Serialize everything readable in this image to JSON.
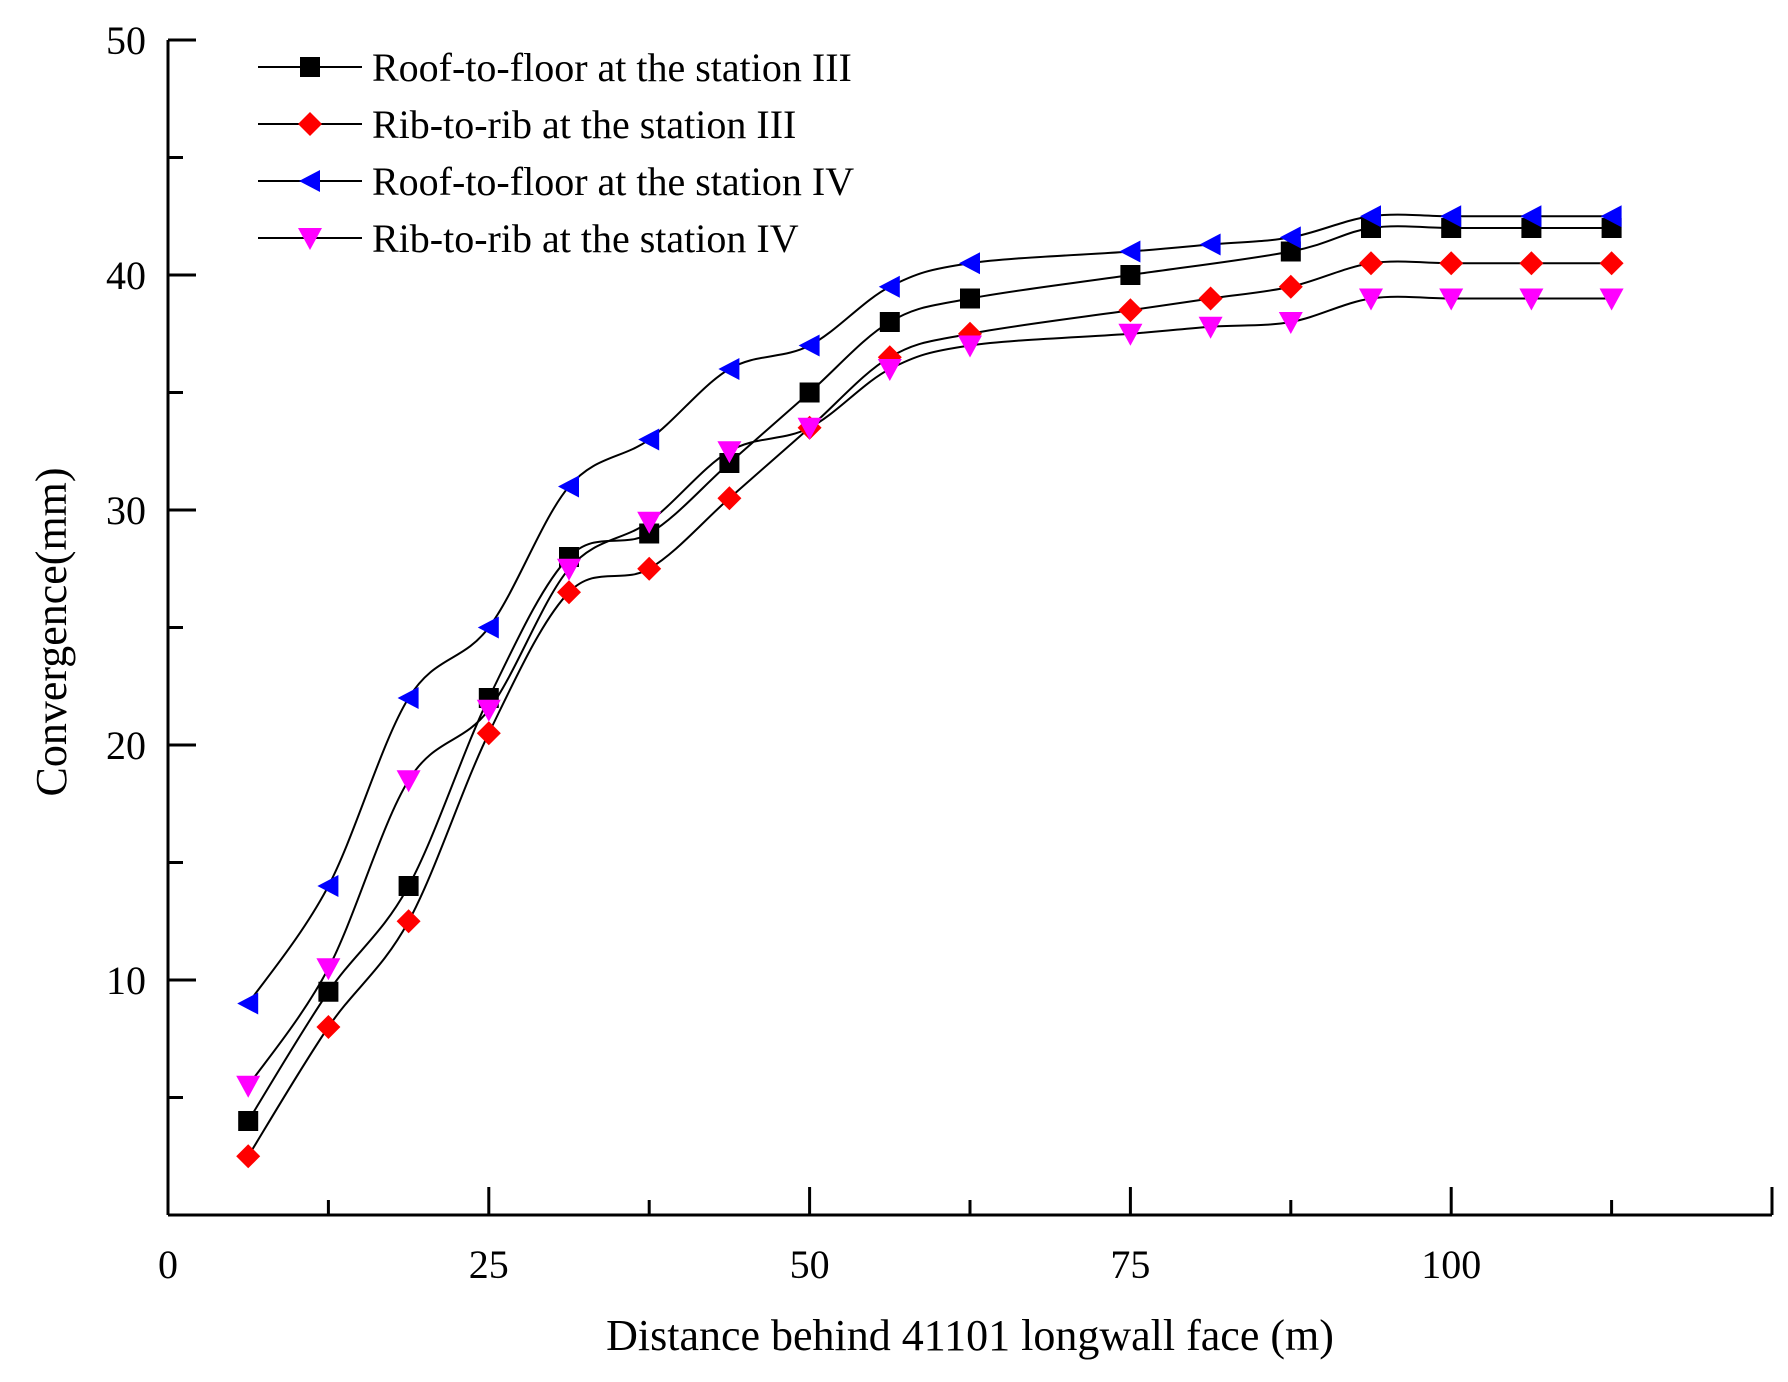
{
  "chart_data": {
    "type": "line",
    "title": "",
    "xlabel": "Distance behind 41101 longwall face (m)",
    "ylabel": "Convergence(mm)",
    "xlim": [
      0,
      125
    ],
    "ylim": [
      0,
      50
    ],
    "x_ticks": [
      0,
      25,
      50,
      75,
      100
    ],
    "y_ticks": [
      10,
      20,
      30,
      40,
      50
    ],
    "x_minor_ticks": [
      12.5,
      37.5,
      62.5,
      87.5,
      112.5
    ],
    "y_minor_ticks": [
      5,
      15,
      25,
      35,
      45
    ],
    "grid": false,
    "legend_position": "top-left",
    "series": [
      {
        "name": "Roof-to-floor at the station III",
        "marker": "square",
        "color": "#000000",
        "x": [
          6.25,
          12.5,
          18.75,
          25,
          31.25,
          37.5,
          43.75,
          50,
          56.25,
          62.5,
          75,
          87.5,
          93.75,
          100,
          106.25,
          112.5
        ],
        "y": [
          4,
          9.5,
          14,
          22,
          28,
          29,
          32,
          35,
          38,
          39,
          40,
          41,
          42,
          42,
          42,
          42
        ]
      },
      {
        "name": "Rib-to-rib at the station III",
        "marker": "diamond",
        "color": "#ff0000",
        "x": [
          6.25,
          12.5,
          18.75,
          25,
          31.25,
          37.5,
          43.75,
          50,
          56.25,
          62.5,
          75,
          81.25,
          87.5,
          93.75,
          100,
          106.25,
          112.5
        ],
        "y": [
          2.5,
          8,
          12.5,
          20.5,
          26.5,
          27.5,
          30.5,
          33.5,
          36.5,
          37.5,
          38.5,
          39,
          39.5,
          40.5,
          40.5,
          40.5,
          40.5
        ]
      },
      {
        "name": "Roof-to-floor at the station IV",
        "marker": "triangle-left",
        "color": "#0000ff",
        "x": [
          6.25,
          12.5,
          18.75,
          25,
          31.25,
          37.5,
          43.75,
          50,
          56.25,
          62.5,
          75,
          81.25,
          87.5,
          93.75,
          100,
          106.25,
          112.5
        ],
        "y": [
          9,
          14,
          22,
          25,
          31,
          33,
          36,
          37,
          39.5,
          40.5,
          41,
          41.3,
          41.6,
          42.5,
          42.5,
          42.5,
          42.5
        ]
      },
      {
        "name": "Rib-to-rib at the station IV",
        "marker": "triangle-down",
        "color": "#ff00ff",
        "x": [
          6.25,
          12.5,
          18.75,
          25,
          31.25,
          37.5,
          43.75,
          50,
          56.25,
          62.5,
          75,
          81.25,
          87.5,
          93.75,
          100,
          106.25,
          112.5
        ],
        "y": [
          5.5,
          10.5,
          18.5,
          21.5,
          27.5,
          29.5,
          32.5,
          33.5,
          36,
          37,
          37.5,
          37.8,
          38,
          39,
          39,
          39,
          39
        ]
      }
    ]
  }
}
